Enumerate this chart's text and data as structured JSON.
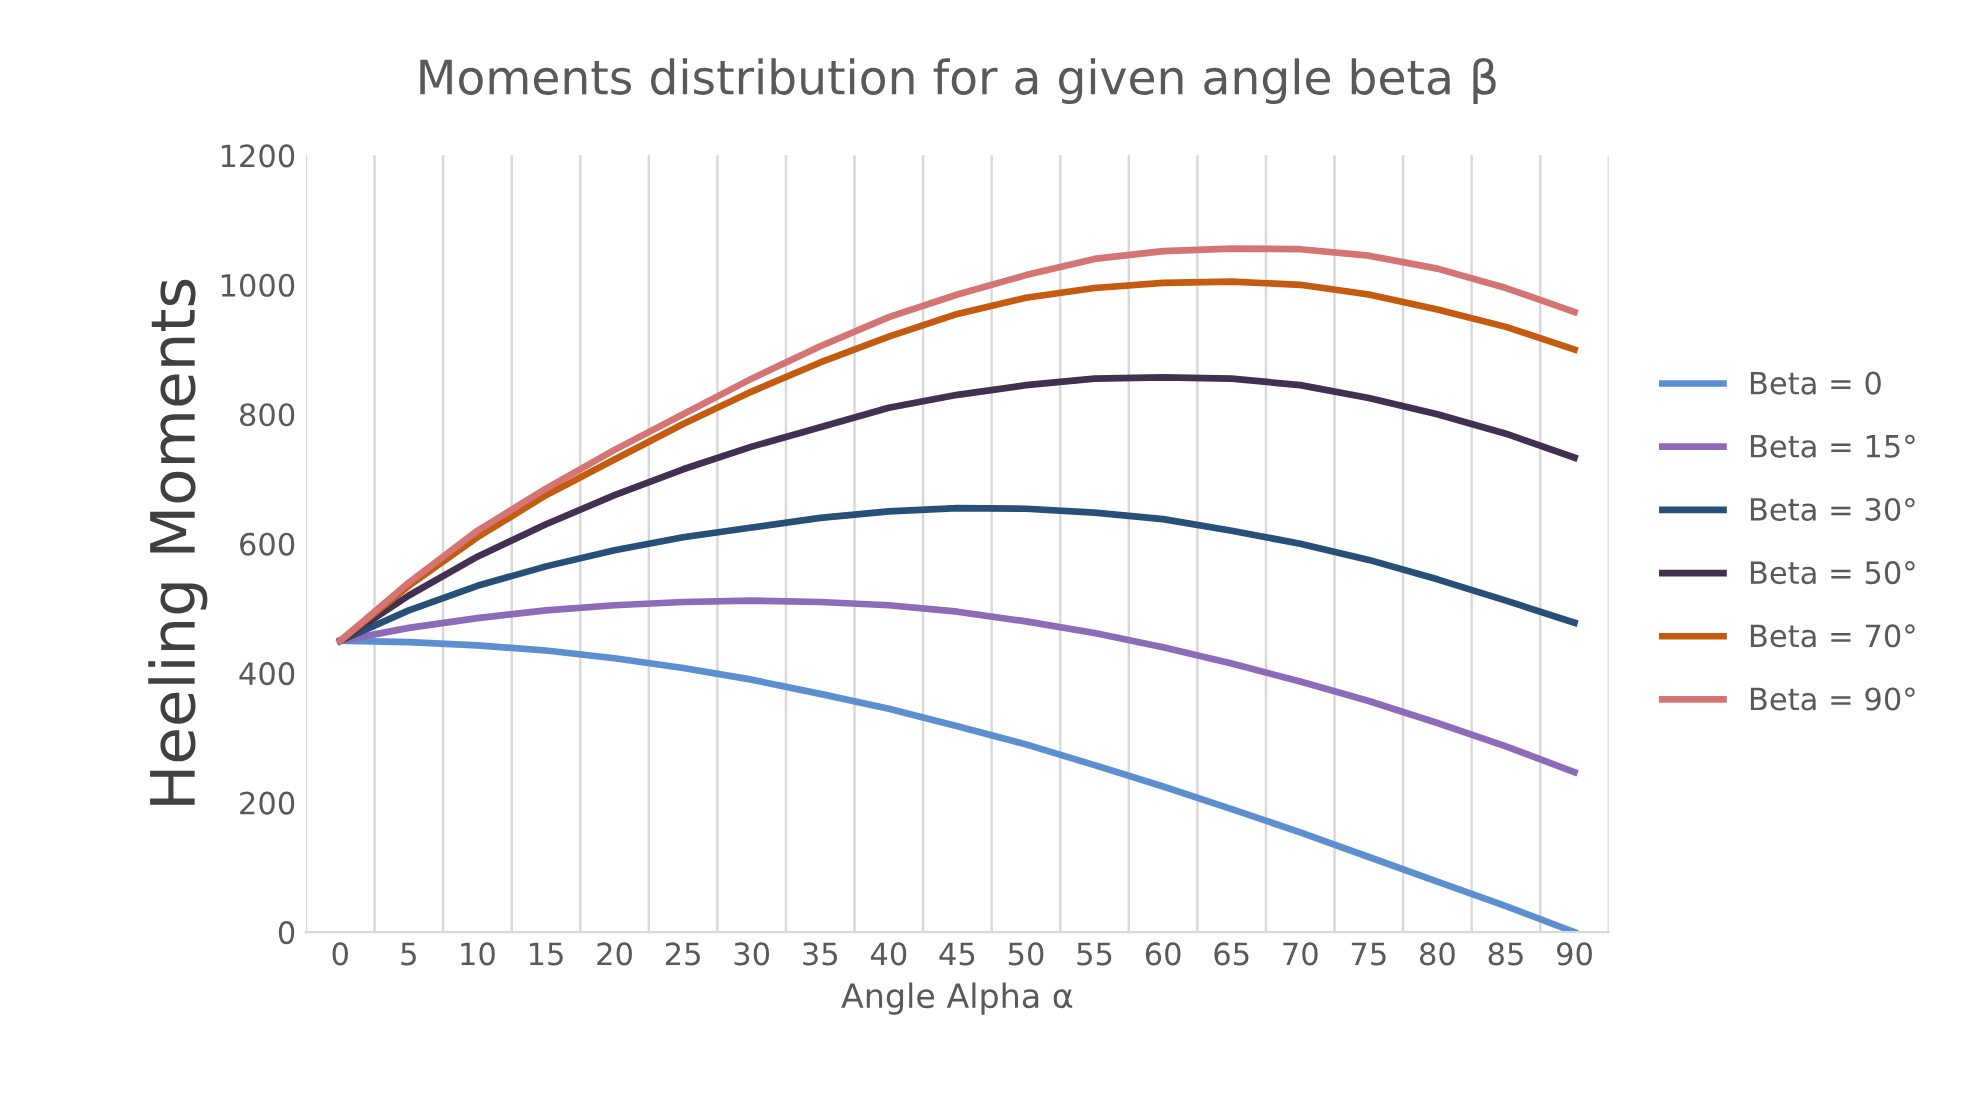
{
  "chart_data": {
    "type": "line",
    "title": "Moments distribution for a given angle beta β",
    "xlabel": "Angle Alpha α",
    "ylabel": "Heeling Moments",
    "categories": [
      "0",
      "5",
      "10",
      "15",
      "20",
      "25",
      "30",
      "35",
      "40",
      "45",
      "50",
      "55",
      "60",
      "65",
      "70",
      "75",
      "80",
      "85",
      "90"
    ],
    "ylim": [
      0,
      1200
    ],
    "yticks": [
      0,
      200,
      400,
      600,
      800,
      1000,
      1200
    ],
    "grid": "x",
    "legend": "right",
    "marker": "none",
    "line_style": "solid",
    "series": [
      {
        "name": "Beta = 0",
        "color": "#5b8fd0",
        "values": [
          450,
          448,
          443,
          435,
          423,
          408,
          390,
          368,
          345,
          318,
          290,
          258,
          225,
          190,
          154,
          116,
          78,
          40,
          0
        ]
      },
      {
        "name": "Beta = 15°",
        "color": "#8c6bb8",
        "values": [
          450,
          470,
          485,
          497,
          505,
          510,
          512,
          510,
          505,
          495,
          480,
          462,
          440,
          415,
          387,
          357,
          323,
          287,
          247
        ]
      },
      {
        "name": "Beta = 30°",
        "color": "#284f78",
        "values": [
          450,
          497,
          535,
          565,
          590,
          610,
          625,
          640,
          650,
          655,
          654,
          648,
          638,
          620,
          600,
          575,
          545,
          512,
          478
        ]
      },
      {
        "name": "Beta = 50°",
        "color": "#41304f",
        "values": [
          450,
          520,
          580,
          630,
          675,
          715,
          750,
          780,
          810,
          830,
          845,
          855,
          857,
          855,
          845,
          825,
          800,
          770,
          733
        ]
      },
      {
        "name": "Beta = 70°",
        "color": "#c55a11",
        "values": [
          450,
          535,
          610,
          675,
          730,
          785,
          835,
          880,
          920,
          955,
          980,
          995,
          1003,
          1005,
          1000,
          985,
          962,
          935,
          900
        ]
      },
      {
        "name": "Beta = 90°",
        "color": "#d47474",
        "values": [
          450,
          540,
          620,
          685,
          745,
          800,
          855,
          905,
          950,
          985,
          1015,
          1040,
          1052,
          1056,
          1055,
          1045,
          1025,
          995,
          958
        ]
      }
    ]
  }
}
